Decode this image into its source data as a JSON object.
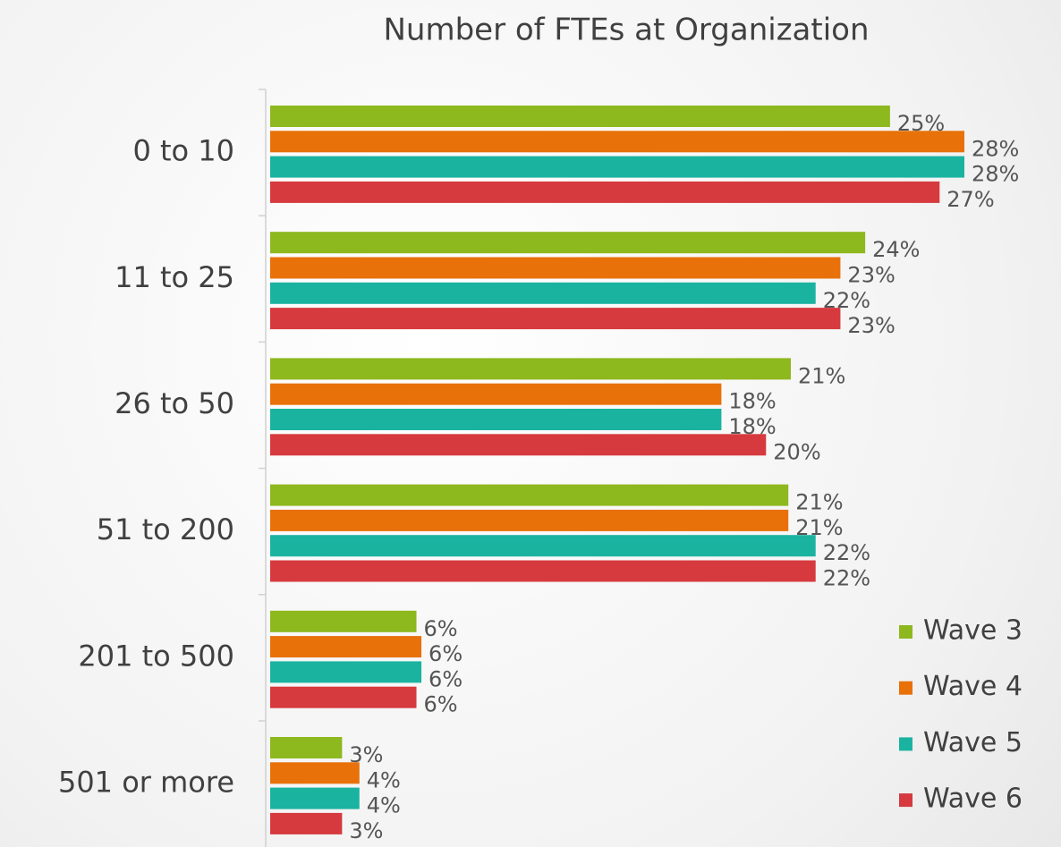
{
  "chart_data": {
    "type": "barh",
    "title": "Number of FTEs at Organization",
    "categories": [
      "0 to 10",
      "11 to 25",
      "26 to 50",
      "51 to 200",
      "201 to 500",
      "501 or more"
    ],
    "series": [
      {
        "name": "Wave 3",
        "color": "#8db81e",
        "values": [
          25,
          24,
          21,
          20.9,
          5.9,
          2.9
        ],
        "value_labels": [
          "25%",
          "24%",
          "21%",
          "21%",
          "6%",
          "3%"
        ]
      },
      {
        "name": "Wave 4",
        "color": "#e8710a",
        "values": [
          28,
          23,
          18.2,
          20.9,
          6.1,
          3.6
        ],
        "value_labels": [
          "28%",
          "23%",
          "18%",
          "21%",
          "6%",
          "4%"
        ]
      },
      {
        "name": "Wave 5",
        "color": "#1ab3a0",
        "values": [
          28,
          22,
          18.2,
          22,
          6.1,
          3.6
        ],
        "value_labels": [
          "28%",
          "22%",
          "18%",
          "22%",
          "6%",
          "4%"
        ]
      },
      {
        "name": "Wave 6",
        "color": "#d63a3e",
        "values": [
          27,
          23,
          20,
          22,
          5.9,
          2.9
        ],
        "value_labels": [
          "27%",
          "23%",
          "20%",
          "22%",
          "6%",
          "3%"
        ]
      }
    ],
    "xlim": [
      0,
      28
    ],
    "legend": "right"
  }
}
